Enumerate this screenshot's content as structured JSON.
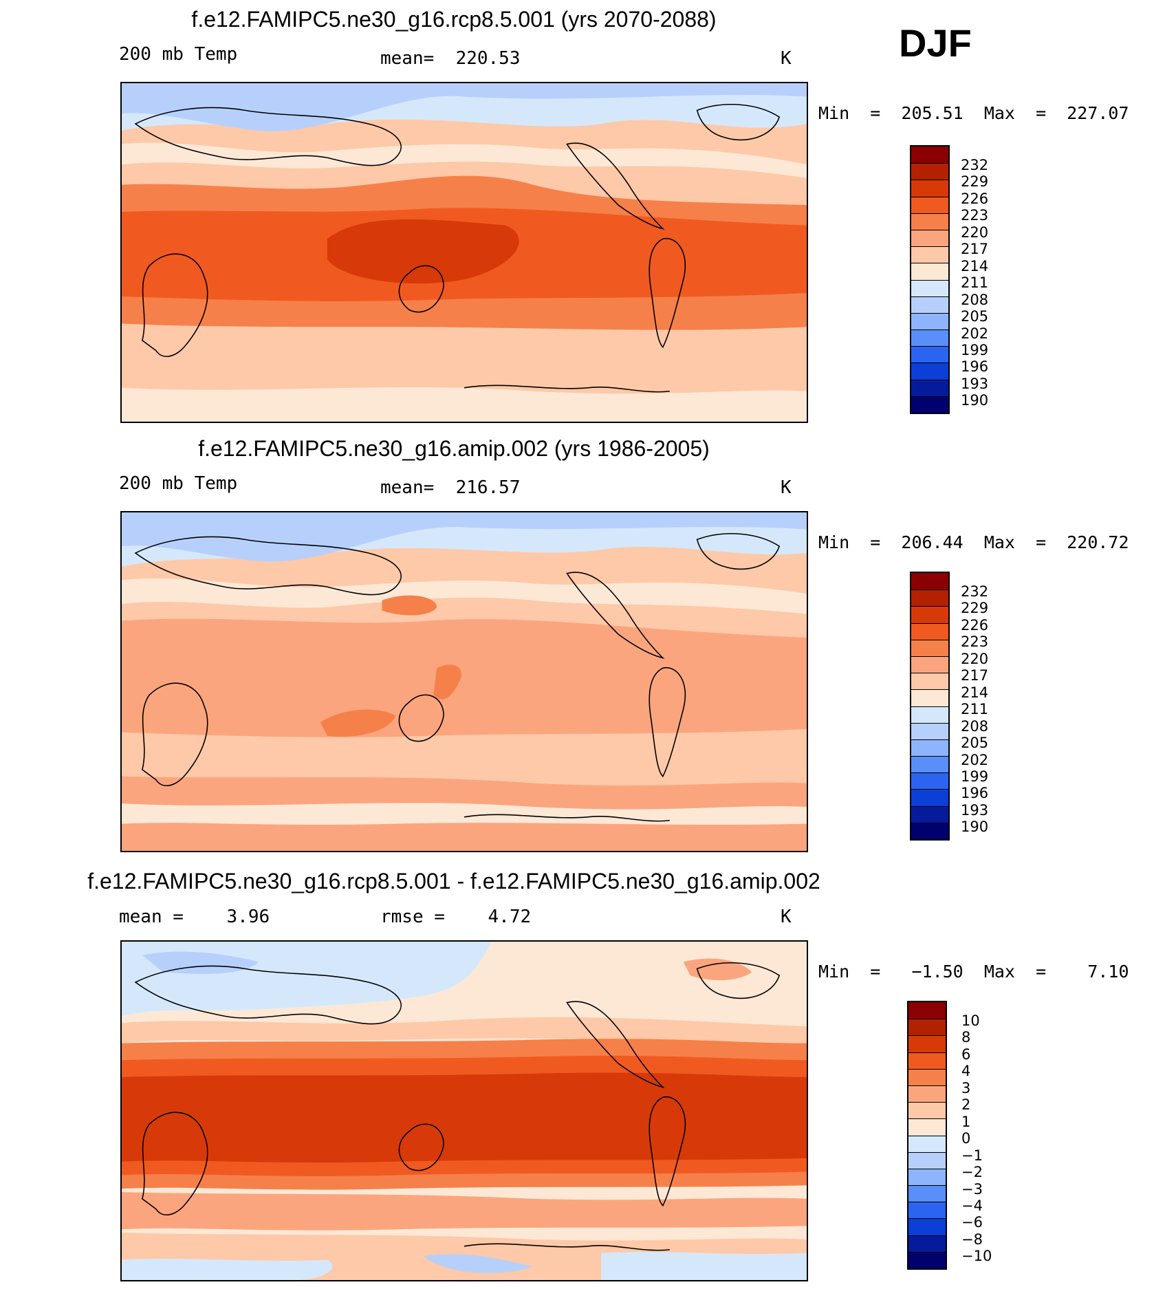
{
  "season": "DJF",
  "panels": [
    {
      "title": "f.e12.FAMIPC5.ne30_g16.rcp8.5.001 (yrs 2070-2088)",
      "left_label": "200 mb Temp",
      "center_label": "mean=  220.53",
      "units": "K",
      "minmax": "Min  =  205.51  Max  =  227.07",
      "colorbar_labels": [
        "232",
        "229",
        "226",
        "223",
        "220",
        "217",
        "214",
        "211",
        "208",
        "205",
        "202",
        "199",
        "196",
        "193",
        "190"
      ],
      "colorbar_colors": [
        "#8b0000",
        "#b22202",
        "#d73a08",
        "#f05a20",
        "#f6804a",
        "#fba57e",
        "#fdc9a8",
        "#fde8d6",
        "#d5e8fb",
        "#b7d0fb",
        "#8db4fc",
        "#5a8ef8",
        "#2a64f0",
        "#0b3fd6",
        "#051b9c",
        "#00006e"
      ]
    },
    {
      "title": "f.e12.FAMIPC5.ne30_g16.amip.002 (yrs 1986-2005)",
      "left_label": "200 mb Temp",
      "center_label": "mean=  216.57",
      "units": "K",
      "minmax": "Min  =  206.44  Max  =  220.72",
      "colorbar_labels": [
        "232",
        "229",
        "226",
        "223",
        "220",
        "217",
        "214",
        "211",
        "208",
        "205",
        "202",
        "199",
        "196",
        "193",
        "190"
      ],
      "colorbar_colors": [
        "#8b0000",
        "#b22202",
        "#d73a08",
        "#f05a20",
        "#f6804a",
        "#fba57e",
        "#fdc9a8",
        "#fde8d6",
        "#d5e8fb",
        "#b7d0fb",
        "#8db4fc",
        "#5a8ef8",
        "#2a64f0",
        "#0b3fd6",
        "#051b9c",
        "#00006e"
      ]
    },
    {
      "title": "f.e12.FAMIPC5.ne30_g16.rcp8.5.001 - f.e12.FAMIPC5.ne30_g16.amip.002",
      "left_label": "mean =    3.96",
      "center_label": "rmse =    4.72",
      "units": "K",
      "minmax": "Min  =   −1.50  Max  =    7.10",
      "colorbar_labels": [
        "10",
        "8",
        "6",
        "4",
        "3",
        "2",
        "1",
        "0",
        "−1",
        "−2",
        "−3",
        "−4",
        "−6",
        "−8",
        "−10"
      ],
      "colorbar_colors": [
        "#8b0000",
        "#b22202",
        "#d73a08",
        "#f05a20",
        "#f6804a",
        "#fba57e",
        "#fdc9a8",
        "#fde8d6",
        "#d5e8fb",
        "#b7d0fb",
        "#8db4fc",
        "#5a8ef8",
        "#2a64f0",
        "#0b3fd6",
        "#051b9c",
        "#00006e"
      ]
    }
  ]
}
